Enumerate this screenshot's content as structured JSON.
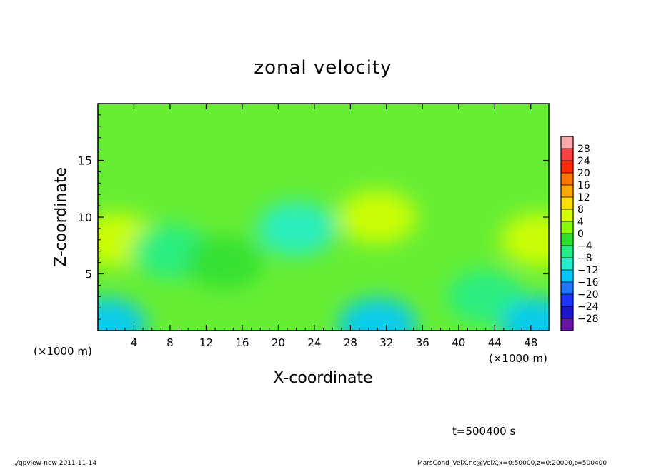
{
  "chart_data": {
    "type": "heatmap",
    "title": "zonal velocity",
    "xlabel": "X-coordinate",
    "ylabel": "Z-coordinate",
    "x_unit": "(×1000 m)",
    "y_unit": "(×1000 m)",
    "xlim": [
      0,
      50
    ],
    "ylim": [
      0,
      20
    ],
    "x_ticks": [
      4,
      8,
      12,
      16,
      20,
      24,
      28,
      32,
      36,
      40,
      44,
      48
    ],
    "y_ticks": [
      5,
      10,
      15
    ],
    "colorbar": {
      "levels": [
        -28,
        -24,
        -20,
        -16,
        -12,
        -8,
        -4,
        0,
        4,
        8,
        12,
        16,
        20,
        24,
        28
      ],
      "labels": [
        "28",
        "24",
        "20",
        "16",
        "12",
        "8",
        "4",
        "0",
        "−4",
        "−8",
        "−12",
        "−16",
        "−20",
        "−24",
        "−28"
      ],
      "colors": [
        "#ffaaaa",
        "#ff4040",
        "#ff2a00",
        "#ff7800",
        "#ffaa00",
        "#ffe000",
        "#d4ff00",
        "#86ff00",
        "#30e030",
        "#22ee88",
        "#22eecc",
        "#00c8ff",
        "#1e78ff",
        "#1e32ff",
        "#1e14c8",
        "#6a14a0"
      ]
    },
    "field_description_points": [
      {
        "x": 2,
        "z": 8,
        "v": 6
      },
      {
        "x": 8,
        "z": 7,
        "v": -5
      },
      {
        "x": 14,
        "z": 6,
        "v": -3
      },
      {
        "x": 22,
        "z": 9,
        "v": -9
      },
      {
        "x": 31,
        "z": 10,
        "v": 6
      },
      {
        "x": 31,
        "z": 0.5,
        "v": -14
      },
      {
        "x": 43,
        "z": 3,
        "v": -7
      },
      {
        "x": 49,
        "z": 8,
        "v": 6
      },
      {
        "x": 1,
        "z": 0.5,
        "v": -12
      },
      {
        "x": 49,
        "z": 0.5,
        "v": -12
      }
    ]
  },
  "time_label": "t=500400 s",
  "footer_left": "./gpview-new  2011-11-14",
  "footer_right": "MarsCond_VelX.nc@VelX,x=0:50000,z=0:20000,t=500400"
}
